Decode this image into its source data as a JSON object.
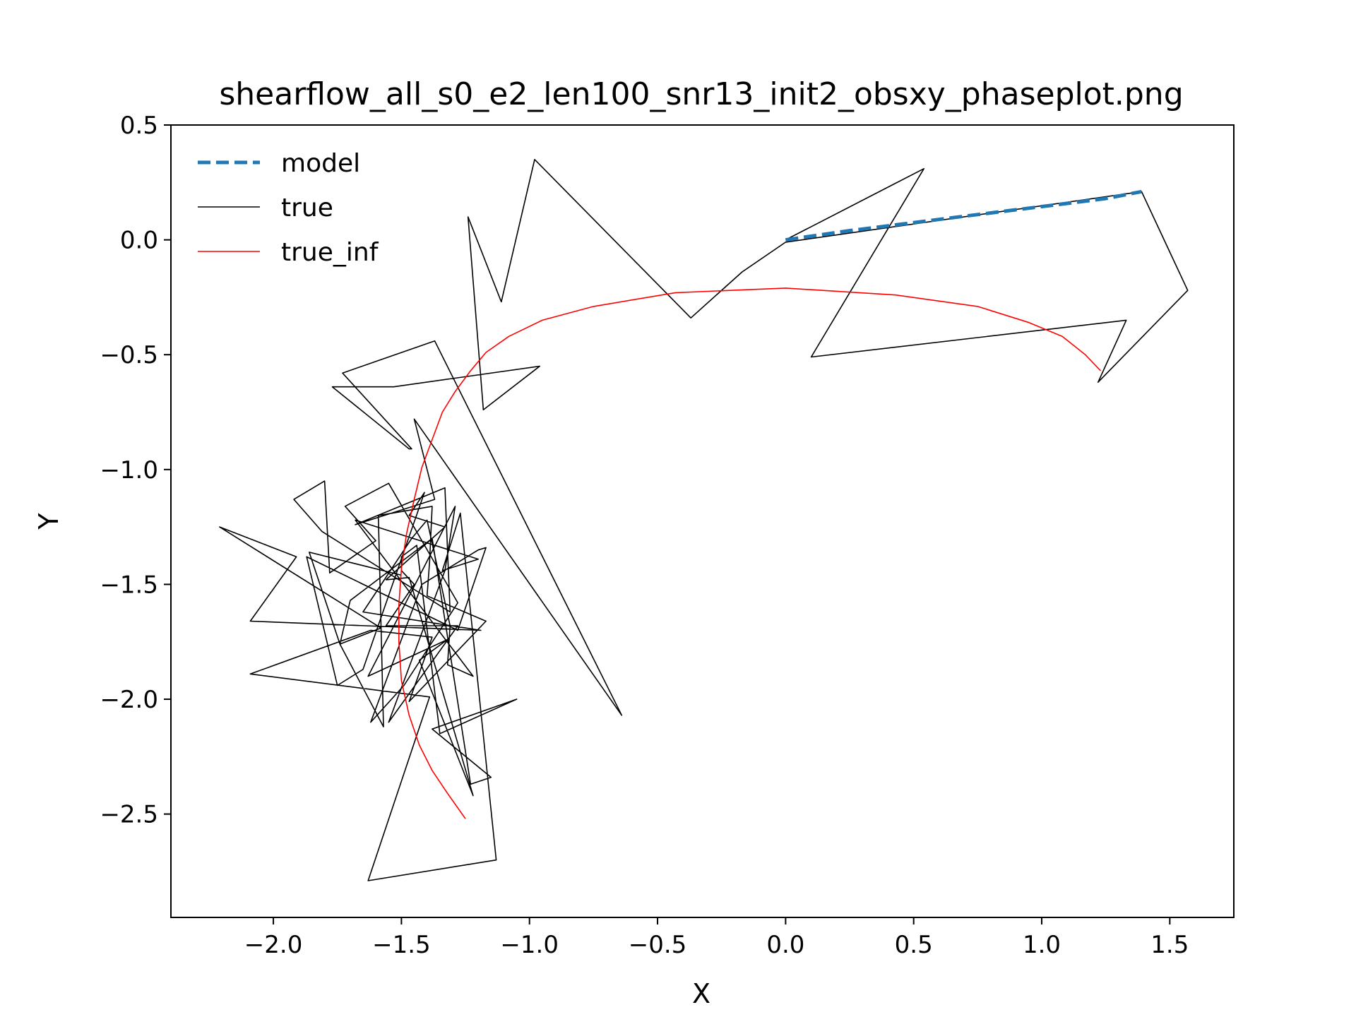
{
  "chart_data": {
    "type": "line",
    "title": "shearflow_all_s0_e2_len100_snr13_init2_obsxy_phaseplot.png",
    "xlabel": "X",
    "ylabel": "Y",
    "xlim": [
      -2.4,
      1.75
    ],
    "ylim": [
      -2.95,
      0.5
    ],
    "xticks": [
      -2.0,
      -1.5,
      -1.0,
      -0.5,
      0.0,
      0.5,
      1.0,
      1.5
    ],
    "xtick_labels": [
      "−2.0",
      "−1.5",
      "−1.0",
      "−0.5",
      "0.0",
      "0.5",
      "1.0",
      "1.5"
    ],
    "yticks": [
      0.5,
      0.0,
      -0.5,
      -1.0,
      -1.5,
      -2.0,
      -2.5
    ],
    "ytick_labels": [
      "0.5",
      "0.0",
      "−0.5",
      "−1.0",
      "−1.5",
      "−2.0",
      "−2.5"
    ],
    "grid": false,
    "legend_position": "top-left",
    "series": [
      {
        "name": "model",
        "color": "#1f77b4",
        "style": "dashed",
        "x": [
          0.0,
          0.25,
          0.5,
          0.75,
          1.0,
          1.25,
          1.39
        ],
        "y": [
          0.0,
          0.04,
          0.075,
          0.11,
          0.145,
          0.18,
          0.21
        ]
      },
      {
        "name": "true",
        "color": "#000000",
        "style": "solid",
        "x": [
          0.0,
          0.54,
          0.1,
          1.33,
          1.22,
          1.57,
          1.39,
          0.0,
          -0.17,
          -0.37,
          -0.98,
          -1.11,
          -1.24,
          -1.18,
          -0.96,
          -1.53,
          -1.77,
          -1.47,
          -1.46,
          -1.73,
          -1.37,
          -0.64,
          -1.45,
          -1.37,
          -1.68,
          -1.33,
          -1.31,
          -1.81,
          -1.92,
          -1.8,
          -1.78,
          -1.6,
          -1.72,
          -1.55,
          -1.28,
          -1.49,
          -1.62,
          -1.42,
          -1.2,
          -1.17,
          -1.28,
          -1.87,
          -1.75,
          -1.65,
          -1.41,
          -1.47,
          -1.33,
          -1.56,
          -1.47,
          -1.22,
          -1.43,
          -1.32,
          -1.63,
          -1.29,
          -1.33,
          -1.55,
          -1.28,
          -1.56,
          -1.45,
          -1.5,
          -1.5,
          -1.44,
          -1.35,
          -1.05,
          -1.38,
          -1.15,
          -1.23,
          -1.38,
          -1.7,
          -1.74,
          -1.57,
          -1.59,
          -1.38,
          -1.39,
          -1.4,
          -1.17,
          -1.47,
          -1.38,
          -1.62,
          -2.09,
          -1.39,
          -1.63,
          -1.13,
          -1.27,
          -1.34,
          -1.2,
          -1.68,
          -1.22,
          -1.32,
          -1.31,
          -1.4,
          -1.46,
          -1.65,
          -1.19,
          -2.09,
          -1.91,
          -2.21,
          -1.58,
          -1.74,
          -1.86,
          -1.5
        ],
        "y": [
          0.0,
          0.31,
          -0.51,
          -0.35,
          -0.62,
          -0.22,
          0.21,
          -0.01,
          -0.14,
          -0.34,
          0.35,
          -0.27,
          0.1,
          -0.74,
          -0.55,
          -0.64,
          -0.64,
          -0.91,
          -0.91,
          -0.58,
          -0.44,
          -2.07,
          -0.78,
          -1.13,
          -1.24,
          -1.08,
          -1.62,
          -1.27,
          -1.13,
          -1.05,
          -1.45,
          -1.31,
          -1.16,
          -1.06,
          -1.58,
          -1.94,
          -2.1,
          -1.5,
          -1.35,
          -1.34,
          -1.7,
          -1.38,
          -1.94,
          -1.87,
          -1.1,
          -1.2,
          -1.25,
          -1.48,
          -1.47,
          -2.42,
          -1.83,
          -1.74,
          -1.9,
          -1.16,
          -1.44,
          -2.1,
          -1.68,
          -1.68,
          -1.5,
          -1.44,
          -1.38,
          -1.33,
          -2.15,
          -2.0,
          -2.13,
          -2.34,
          -2.37,
          -1.3,
          -1.57,
          -1.76,
          -2.12,
          -1.2,
          -1.16,
          -1.4,
          -1.55,
          -1.66,
          -2.01,
          -1.73,
          -1.7,
          -1.89,
          -1.99,
          -2.79,
          -2.7,
          -1.19,
          -1.44,
          -1.39,
          -1.22,
          -1.9,
          -1.85,
          -1.68,
          -1.22,
          -1.3,
          -1.62,
          -1.7,
          -1.66,
          -1.38,
          -1.25,
          -1.69,
          -1.76,
          -1.36,
          -1.46
        ]
      },
      {
        "name": "true_inf",
        "color": "#ff0000",
        "style": "solid",
        "x": [
          1.23,
          1.17,
          1.08,
          0.95,
          0.75,
          0.43,
          0.0,
          -0.43,
          -0.75,
          -0.95,
          -1.08,
          -1.17,
          -1.23,
          -1.29,
          -1.34,
          -1.38,
          -1.42,
          -1.45,
          -1.48,
          -1.5,
          -1.51,
          -1.51,
          -1.5,
          -1.47,
          -1.43,
          -1.38,
          -1.32,
          -1.25
        ],
        "y": [
          -0.57,
          -0.5,
          -0.42,
          -0.36,
          -0.29,
          -0.24,
          -0.21,
          -0.23,
          -0.29,
          -0.35,
          -0.42,
          -0.49,
          -0.57,
          -0.66,
          -0.75,
          -0.87,
          -0.99,
          -1.13,
          -1.28,
          -1.43,
          -1.59,
          -1.75,
          -1.92,
          -2.07,
          -2.2,
          -2.31,
          -2.41,
          -2.52
        ]
      }
    ]
  }
}
